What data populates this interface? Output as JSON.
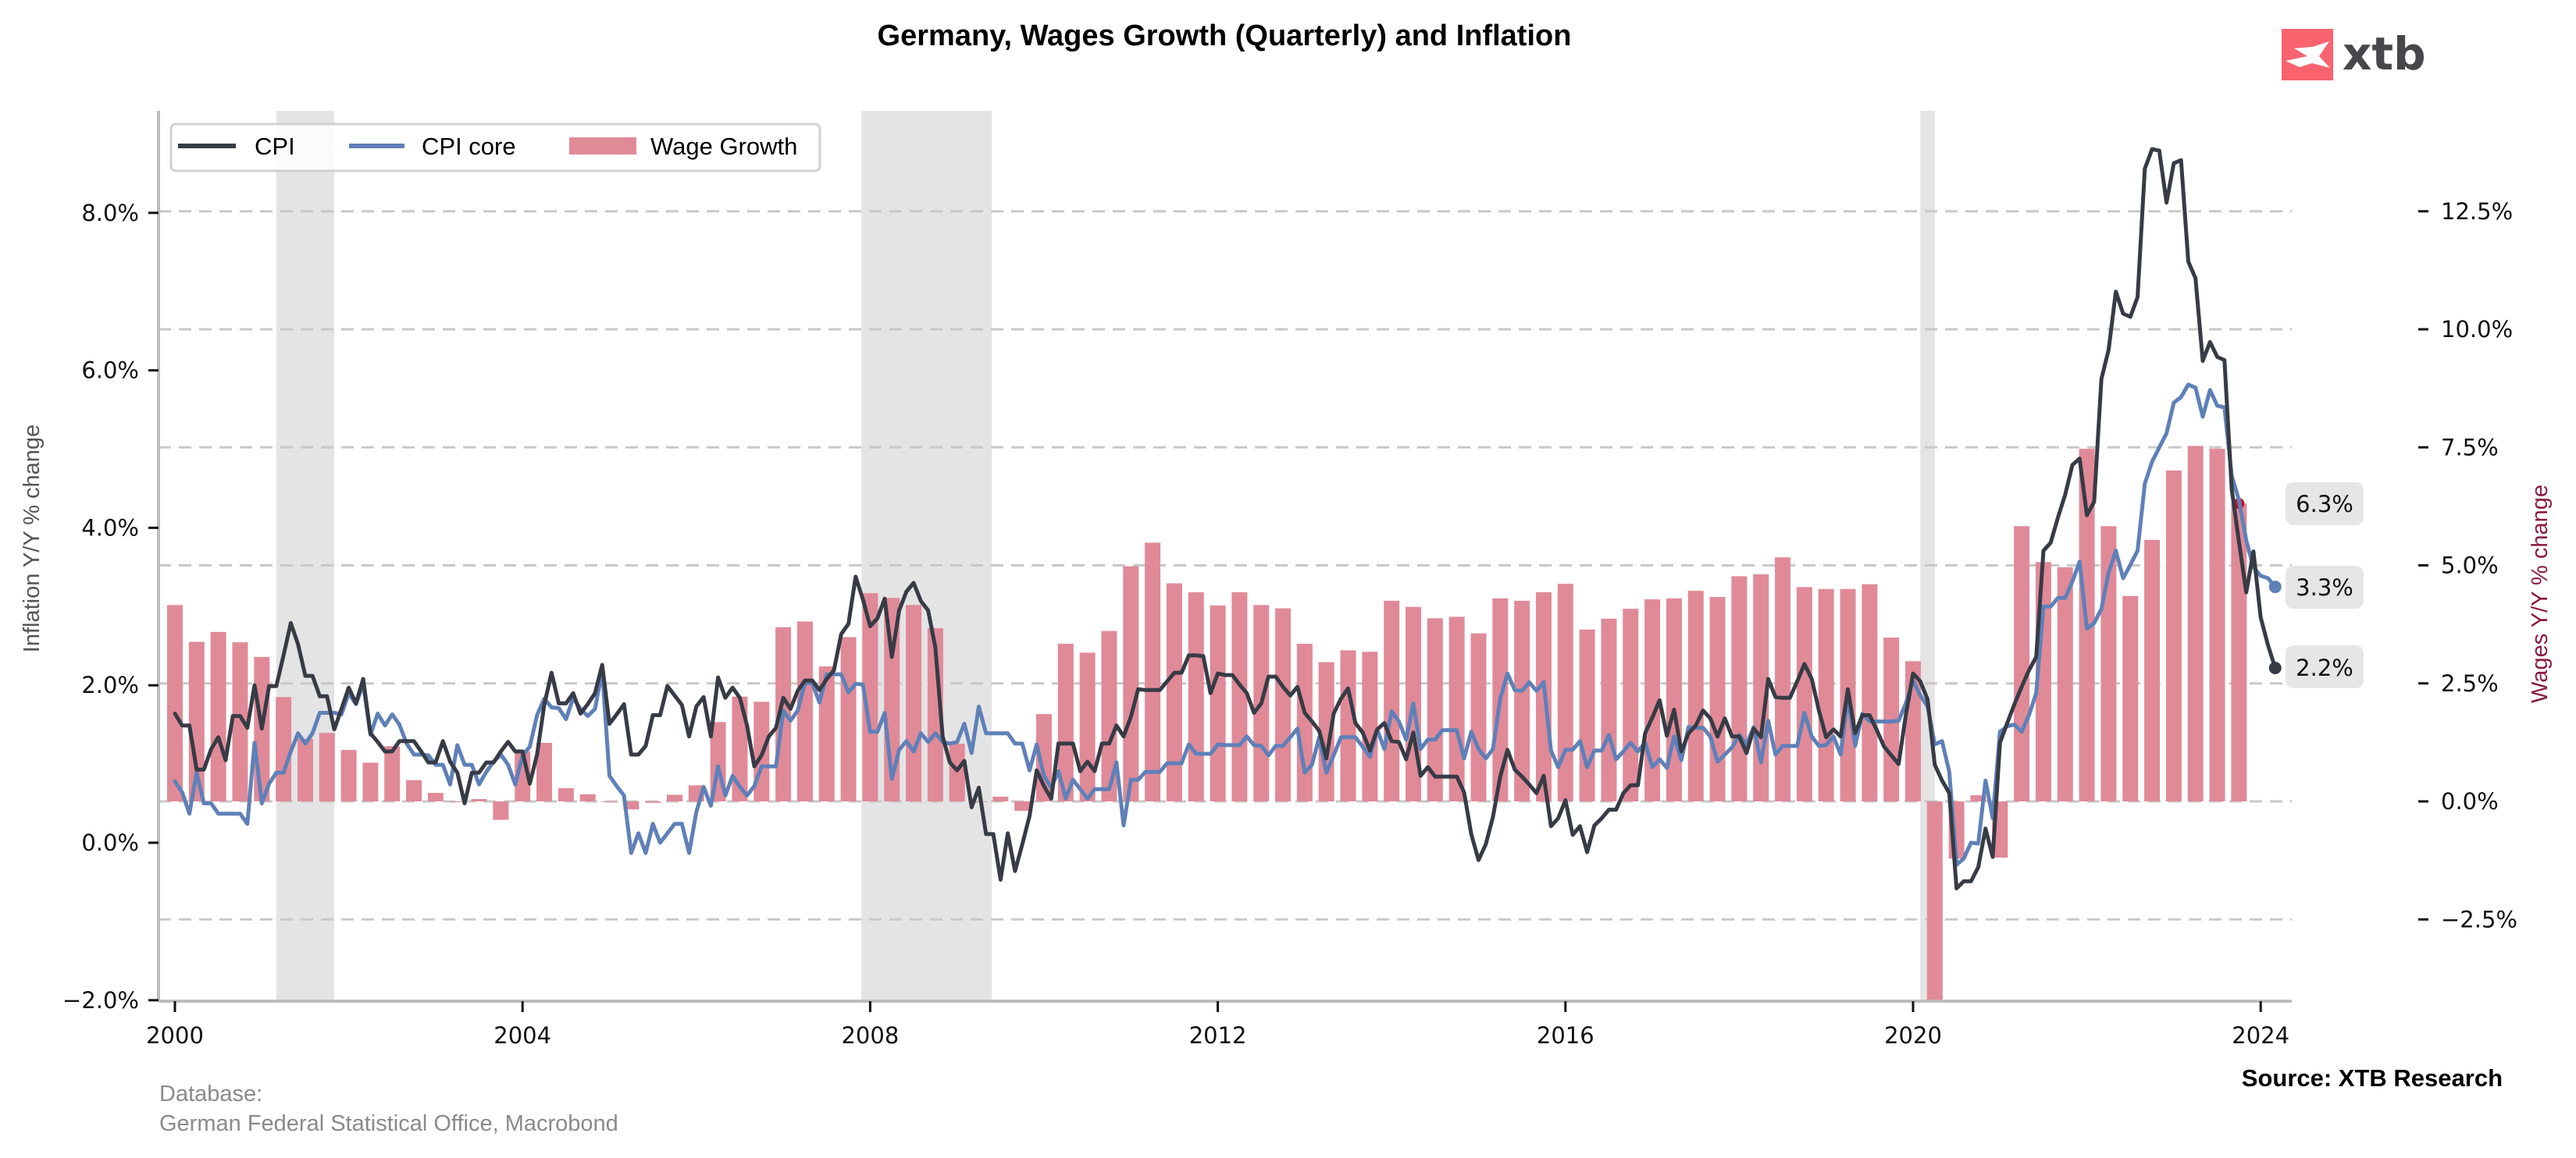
{
  "header": {
    "title": "Germany, Wages Growth (Quarterly) and Inflation",
    "logo_text": "xtb",
    "logo_color": "#f8636e"
  },
  "footer": {
    "database_label": "Database:",
    "database_value": "German Federal Statistical Office, Macrobond",
    "source": "Source: XTB Research"
  },
  "colors": {
    "cpi": "#373b45",
    "cpi_core": "#5f80b8",
    "wages": "#e08a98",
    "wages_last_marker": "#c8102e",
    "recession_shade": "#e4e4e4",
    "grid": "#c8c8c8",
    "callout_bg": "#e6e6e6",
    "right_axis_title": "#8b1a3e"
  },
  "chart_data": {
    "type": "line+bar (dual axis)",
    "title": "Germany, Wages Growth (Quarterly) and Inflation",
    "xlabel": "",
    "ylabel_left": "Inflation Y/Y % change",
    "ylabel_right": "Wages Y/Y % change",
    "ylim_left": [
      -2.0,
      9.3
    ],
    "ylim_right": [
      -4.3,
      14.6
    ],
    "x_range": [
      "1999-11",
      "2024-06"
    ],
    "x_ticks": [
      "2000",
      "2004",
      "2008",
      "2012",
      "2016",
      "2020",
      "2024"
    ],
    "y_ticks_left": [
      "−2.0%",
      "0.0%",
      "2.0%",
      "4.0%",
      "6.0%",
      "8.0%"
    ],
    "y_ticks_left_values": [
      -2,
      0,
      2,
      4,
      6,
      8
    ],
    "y_ticks_right": [
      "−2.5%",
      "0.0%",
      "2.5%",
      "5.0%",
      "7.5%",
      "10.0%",
      "12.5%"
    ],
    "y_ticks_right_values": [
      -2.5,
      0,
      2.5,
      5,
      7.5,
      10,
      12.5
    ],
    "grid": "horizontal dashed at right-axis ticks",
    "legend": {
      "placement": "top-left",
      "entries": [
        "CPI",
        "CPI core",
        "Wage Growth"
      ]
    },
    "recessions": [
      {
        "start": "2001-03",
        "end": "2001-11",
        "start_month_index": 14,
        "end_month_index": 22
      },
      {
        "start": "2007-11",
        "end": "2009-05",
        "start_month_index": 94.8,
        "end_month_index": 112.8
      },
      {
        "start": "2020-02",
        "end": "2020-04",
        "start_month_index": 241,
        "end_month_index": 243
      }
    ],
    "series": [
      {
        "name": "CPI",
        "axis": "left",
        "frequency": "monthly",
        "start": "2000-01",
        "end": "2024-03",
        "last_value_label": "2.2%",
        "values": [
          1.64,
          1.49,
          1.49,
          0.93,
          0.93,
          1.19,
          1.34,
          1.05,
          1.61,
          1.61,
          1.46,
          2.0,
          1.45,
          1.99,
          1.99,
          2.38,
          2.79,
          2.52,
          2.12,
          2.12,
          1.86,
          1.86,
          1.44,
          1.7,
          1.97,
          1.77,
          2.08,
          1.39,
          1.28,
          1.16,
          1.16,
          1.29,
          1.29,
          1.29,
          1.16,
          1.02,
          1.02,
          1.29,
          1.03,
          0.89,
          0.5,
          0.89,
          0.89,
          1.02,
          1.02,
          1.16,
          1.28,
          1.16,
          1.16,
          0.75,
          1.12,
          1.75,
          2.16,
          1.77,
          1.77,
          1.9,
          1.64,
          1.76,
          1.9,
          2.26,
          1.51,
          1.63,
          1.76,
          1.12,
          1.12,
          1.23,
          1.62,
          1.62,
          1.99,
          1.87,
          1.75,
          1.35,
          1.73,
          1.85,
          1.35,
          2.1,
          1.84,
          1.97,
          1.84,
          1.49,
          0.97,
          1.11,
          1.35,
          1.46,
          1.84,
          1.7,
          1.93,
          2.06,
          2.06,
          1.94,
          2.08,
          2.19,
          2.65,
          2.78,
          3.38,
          3.09,
          2.75,
          2.85,
          3.1,
          2.36,
          2.95,
          3.19,
          3.3,
          3.07,
          2.95,
          2.48,
          1.35,
          1.02,
          0.92,
          1.04,
          0.45,
          0.7,
          0.11,
          0.11,
          -0.47,
          0.12,
          -0.36,
          -0.02,
          0.34,
          0.92,
          0.72,
          0.56,
          1.26,
          1.26,
          1.26,
          0.91,
          1.03,
          0.91,
          1.26,
          1.26,
          1.49,
          1.35,
          1.6,
          1.95,
          1.94,
          1.94,
          1.94,
          2.05,
          2.16,
          2.16,
          2.38,
          2.38,
          2.37,
          1.9,
          2.15,
          2.13,
          2.13,
          2.01,
          1.9,
          1.65,
          1.77,
          2.11,
          2.11,
          1.98,
          1.87,
          1.98,
          1.65,
          1.54,
          1.42,
          1.07,
          1.64,
          1.83,
          1.96,
          1.52,
          1.4,
          1.17,
          1.44,
          1.52,
          1.29,
          1.28,
          1.06,
          1.4,
          0.85,
          0.96,
          0.84,
          0.84,
          0.84,
          0.84,
          0.64,
          0.11,
          -0.22,
          -0.02,
          0.33,
          0.84,
          1.18,
          0.93,
          0.84,
          0.74,
          0.63,
          0.85,
          0.21,
          0.31,
          0.54,
          0.1,
          0.21,
          -0.12,
          0.22,
          0.31,
          0.42,
          0.42,
          0.63,
          0.73,
          0.73,
          1.39,
          1.59,
          1.81,
          1.36,
          1.69,
          1.16,
          1.39,
          1.49,
          1.68,
          1.58,
          1.35,
          1.58,
          1.35,
          1.35,
          1.14,
          1.45,
          1.34,
          2.08,
          1.85,
          1.84,
          1.84,
          2.05,
          2.27,
          2.08,
          1.68,
          1.34,
          1.44,
          1.35,
          1.95,
          1.39,
          1.62,
          1.62,
          1.43,
          1.22,
          1.11,
          1.0,
          1.62,
          2.15,
          2.05,
          1.82,
          0.99,
          0.79,
          0.63,
          -0.58,
          -0.49,
          -0.49,
          -0.31,
          0.18,
          -0.18,
          1.27,
          1.52,
          1.76,
          1.98,
          2.19,
          2.36,
          3.71,
          3.81,
          4.13,
          4.42,
          4.8,
          4.88,
          4.16,
          4.33,
          5.89,
          6.26,
          7.0,
          6.72,
          6.68,
          6.93,
          8.56,
          8.81,
          8.79,
          8.13,
          8.63,
          8.67,
          7.38,
          7.17,
          6.12,
          6.36,
          6.17,
          6.13,
          4.49,
          3.82,
          3.18,
          3.7,
          2.86,
          2.51,
          2.22
        ]
      },
      {
        "name": "CPI core",
        "axis": "left",
        "frequency": "monthly",
        "start": "2000-01",
        "end": "2024-03",
        "last_value_label": "3.3%",
        "values": [
          0.78,
          0.64,
          0.37,
          0.89,
          0.5,
          0.5,
          0.37,
          0.37,
          0.37,
          0.37,
          0.24,
          1.27,
          0.5,
          0.75,
          0.89,
          0.89,
          1.16,
          1.39,
          1.26,
          1.39,
          1.65,
          1.65,
          1.65,
          1.63,
          1.9,
          1.76,
          2.02,
          1.37,
          1.64,
          1.49,
          1.63,
          1.5,
          1.26,
          1.12,
          1.12,
          1.11,
          0.99,
          0.99,
          0.74,
          1.24,
          0.99,
          0.99,
          0.74,
          0.9,
          1.03,
          1.12,
          0.99,
          0.74,
          1.11,
          1.22,
          1.62,
          1.83,
          1.72,
          1.71,
          1.57,
          1.84,
          1.7,
          1.61,
          1.7,
          2.19,
          0.85,
          0.72,
          0.6,
          -0.13,
          0.12,
          -0.13,
          0.24,
          0.0,
          0.12,
          0.24,
          0.24,
          -0.13,
          0.39,
          0.71,
          0.47,
          0.97,
          0.6,
          0.85,
          0.71,
          0.6,
          0.72,
          0.97,
          0.97,
          0.97,
          1.68,
          1.55,
          1.68,
          2.03,
          2.03,
          1.78,
          2.14,
          2.14,
          2.14,
          1.91,
          2.02,
          2.01,
          1.41,
          1.41,
          1.65,
          0.81,
          1.18,
          1.29,
          1.16,
          1.39,
          1.28,
          1.39,
          1.28,
          1.26,
          1.28,
          1.51,
          1.14,
          1.73,
          1.39,
          1.39,
          1.39,
          1.39,
          1.26,
          1.26,
          0.92,
          1.25,
          0.85,
          0.7,
          0.91,
          0.56,
          0.8,
          0.68,
          0.56,
          0.68,
          0.68,
          0.68,
          1.02,
          0.22,
          0.8,
          0.8,
          0.9,
          0.9,
          0.9,
          1.01,
          1.01,
          1.01,
          1.25,
          1.13,
          1.13,
          1.13,
          1.25,
          1.24,
          1.24,
          1.24,
          1.35,
          1.24,
          1.23,
          1.11,
          1.23,
          1.23,
          1.34,
          1.45,
          0.89,
          0.99,
          1.34,
          0.89,
          1.11,
          1.34,
          1.34,
          1.34,
          1.22,
          1.09,
          1.44,
          1.19,
          1.67,
          1.54,
          1.31,
          1.77,
          1.19,
          1.31,
          1.31,
          1.43,
          1.43,
          1.43,
          1.07,
          1.41,
          1.19,
          1.07,
          1.19,
          1.83,
          2.15,
          1.94,
          1.93,
          2.04,
          1.93,
          2.04,
          1.17,
          0.96,
          1.18,
          1.18,
          1.29,
          0.96,
          1.17,
          1.17,
          1.37,
          1.06,
          1.16,
          1.27,
          1.16,
          1.27,
          0.96,
          1.06,
          0.95,
          1.35,
          1.05,
          1.47,
          1.46,
          1.46,
          1.35,
          1.03,
          1.12,
          1.21,
          1.37,
          1.25,
          1.47,
          1.02,
          1.55,
          1.12,
          1.23,
          1.23,
          1.23,
          1.65,
          1.35,
          1.23,
          1.24,
          1.35,
          1.12,
          1.85,
          1.23,
          1.64,
          1.54,
          1.54,
          1.54,
          1.54,
          1.55,
          1.77,
          2.06,
          1.87,
          1.73,
          1.25,
          1.29,
          0.9,
          -0.28,
          -0.2,
          0.0,
          -0.01,
          0.79,
          0.31,
          1.41,
          1.48,
          1.5,
          1.41,
          1.62,
          1.9,
          3.0,
          3.0,
          3.11,
          3.11,
          3.32,
          3.57,
          2.72,
          2.79,
          2.97,
          3.43,
          3.71,
          3.36,
          3.53,
          3.71,
          4.56,
          4.84,
          5.02,
          5.2,
          5.59,
          5.66,
          5.82,
          5.78,
          5.41,
          5.75,
          5.55,
          5.53,
          4.66,
          4.35,
          3.84,
          3.5,
          3.39,
          3.36,
          3.25
        ]
      },
      {
        "name": "Wage Growth",
        "axis": "right",
        "frequency": "quarterly",
        "start": "2000-Q1",
        "end": "2023-Q4",
        "last_value_label": "6.3%",
        "note": "2020-Q2 bar is clipped at the bottom of the plot",
        "values": [
          4.16,
          3.38,
          3.59,
          3.37,
          3.06,
          2.21,
          1.33,
          1.45,
          1.09,
          0.82,
          1.17,
          0.45,
          0.18,
          -0.01,
          0.05,
          -0.39,
          1.06,
          1.24,
          0.28,
          0.15,
          0.0,
          -0.17,
          -0.03,
          0.14,
          0.34,
          1.68,
          2.22,
          2.11,
          3.69,
          3.81,
          2.86,
          3.48,
          4.41,
          4.31,
          4.16,
          3.67,
          1.22,
          0.0,
          0.1,
          -0.2,
          1.85,
          3.34,
          3.15,
          3.61,
          4.98,
          5.48,
          4.62,
          4.43,
          4.15,
          4.43,
          4.16,
          4.09,
          3.34,
          2.95,
          3.2,
          3.17,
          4.25,
          4.12,
          3.88,
          3.91,
          3.56,
          4.3,
          4.25,
          4.43,
          4.61,
          3.64,
          3.87,
          4.08,
          4.28,
          4.3,
          4.46,
          4.33,
          4.77,
          4.81,
          5.17,
          4.54,
          4.5,
          4.5,
          4.6,
          3.47,
          2.97,
          -4.4,
          -1.21,
          0.13,
          -1.19,
          5.83,
          5.07,
          4.96,
          7.47,
          5.83,
          4.35,
          5.54,
          7.01,
          7.53,
          7.47,
          6.31
        ]
      }
    ],
    "annotations": [
      "6.3%",
      "3.3%",
      "2.2%"
    ]
  }
}
